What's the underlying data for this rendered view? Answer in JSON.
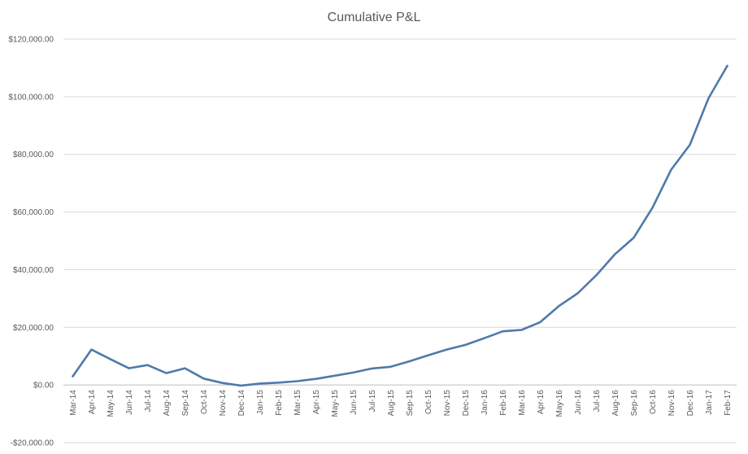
{
  "chart_data": {
    "type": "line",
    "title": "Cumulative P&L",
    "xlabel": "",
    "ylabel": "",
    "ylim": [
      -20000,
      120000
    ],
    "y_ticks": [
      -20000,
      0,
      20000,
      40000,
      60000,
      80000,
      100000,
      120000
    ],
    "y_tick_labels": [
      "-$20,000.00",
      "$0.00",
      "$20,000.00",
      "$40,000.00",
      "$60,000.00",
      "$80,000.00",
      "$100,000.00",
      "$120,000.00"
    ],
    "grid": true,
    "legend": "none",
    "categories": [
      "Mar-14",
      "Apr-14",
      "May-14",
      "Jun-14",
      "Jul-14",
      "Aug-14",
      "Sep-14",
      "Oct-14",
      "Nov-14",
      "Dec-14",
      "Jan-15",
      "Feb-15",
      "Mar-15",
      "Apr-15",
      "May-15",
      "Jun-15",
      "Jul-15",
      "Aug-15",
      "Sep-15",
      "Oct-15",
      "Nov-15",
      "Dec-15",
      "Jan-16",
      "Feb-16",
      "Mar-16",
      "Apr-16",
      "May-16",
      "Jun-16",
      "Jul-16",
      "Aug-16",
      "Sep-16",
      "Oct-16",
      "Nov-16",
      "Dec-16",
      "Jan-17",
      "Feb-17"
    ],
    "series": [
      {
        "color": "#4f7aab",
        "values": [
          3000,
          12300,
          9000,
          5800,
          6900,
          4100,
          5800,
          2200,
          700,
          -200,
          500,
          800,
          1300,
          2100,
          3200,
          4300,
          5700,
          6300,
          8200,
          10300,
          12300,
          13900,
          16200,
          18600,
          19100,
          21800,
          27400,
          31800,
          38100,
          45400,
          51100,
          61500,
          74700,
          83300,
          99500,
          110700
        ]
      }
    ]
  }
}
